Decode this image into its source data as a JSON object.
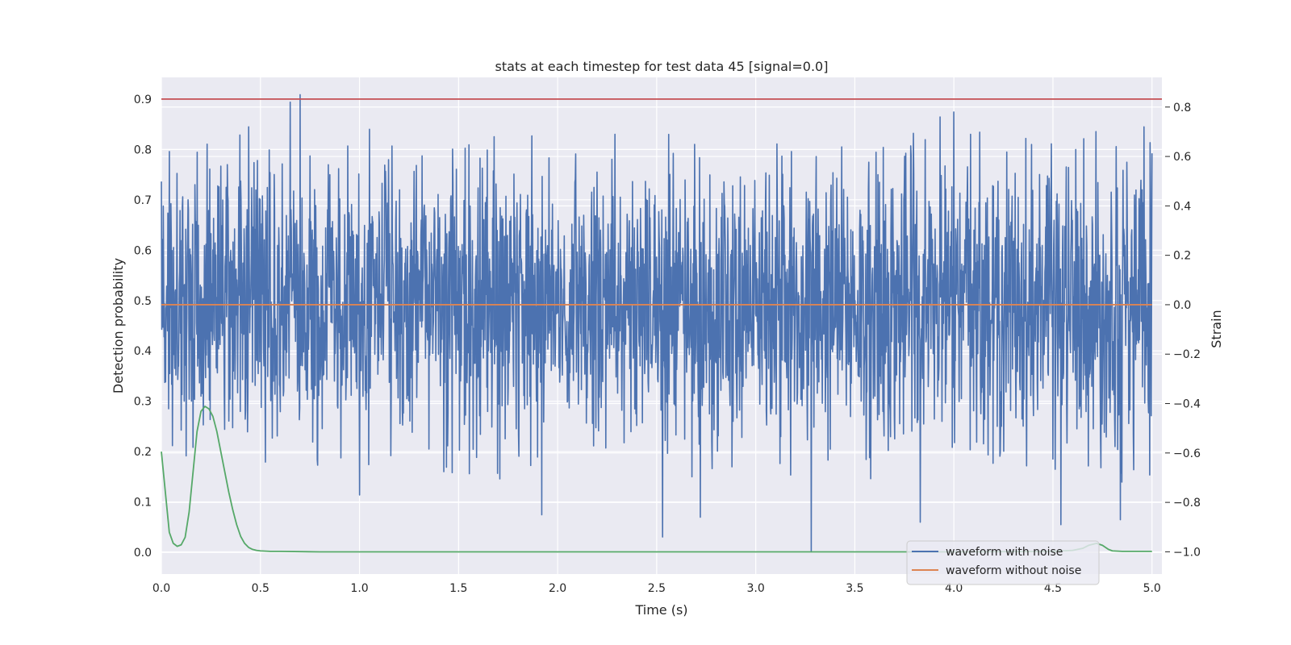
{
  "chart_data": {
    "type": "line",
    "title": "stats at each timestep for test data 45 [signal=0.0]",
    "xlabel": "Time (s)",
    "ylabel_left": "Detection probability",
    "ylabel_right": "Strain",
    "xlim": [
      0.0,
      5.05
    ],
    "ylim_left": [
      -0.043,
      0.943
    ],
    "ylim_right": [
      -1.09,
      0.92
    ],
    "x_ticks": [
      "0.0",
      "0.5",
      "1.0",
      "1.5",
      "2.0",
      "2.5",
      "3.0",
      "3.5",
      "4.0",
      "4.5",
      "5.0"
    ],
    "y_left_ticks": [
      "0.0",
      "0.1",
      "0.2",
      "0.3",
      "0.4",
      "0.5",
      "0.6",
      "0.7",
      "0.8",
      "0.9"
    ],
    "y_right_ticks": [
      "−1.0",
      "−0.8",
      "−0.6",
      "−0.4",
      "−0.2",
      "0.0",
      "0.2",
      "0.4",
      "0.6",
      "0.8"
    ],
    "grid": true,
    "legend_position": "lower-right",
    "threshold": {
      "value": 0.9,
      "axis": "left",
      "color": "#c44e52"
    },
    "series": [
      {
        "name": "waveform with noise",
        "axis": "right",
        "color": "#4c72b0",
        "x_range": [
          0.0,
          5.0
        ],
        "noise_amplitude_std": 0.28,
        "peaks": [
          {
            "x": 0.04,
            "y": 0.62
          },
          {
            "x": 0.23,
            "y": 0.65
          },
          {
            "x": 0.44,
            "y": 0.72
          },
          {
            "x": 0.65,
            "y": 0.82
          },
          {
            "x": 0.7,
            "y": 0.85
          },
          {
            "x": 1.05,
            "y": 0.71
          },
          {
            "x": 1.68,
            "y": 0.68
          },
          {
            "x": 2.29,
            "y": 0.69
          },
          {
            "x": 3.18,
            "y": 0.62
          },
          {
            "x": 3.93,
            "y": 0.76
          },
          {
            "x": 4.0,
            "y": 0.78
          },
          {
            "x": 4.82,
            "y": 0.64
          },
          {
            "x": 4.96,
            "y": 0.72
          }
        ],
        "troughs": [
          {
            "x": 1.0,
            "y": -0.77
          },
          {
            "x": 1.92,
            "y": -0.85
          },
          {
            "x": 2.53,
            "y": -0.94
          },
          {
            "x": 2.72,
            "y": -0.86
          },
          {
            "x": 3.28,
            "y": -1.0
          },
          {
            "x": 3.83,
            "y": -0.88
          },
          {
            "x": 4.54,
            "y": -0.89
          },
          {
            "x": 4.84,
            "y": -0.87
          }
        ]
      },
      {
        "name": "waveform without noise",
        "axis": "right",
        "color": "#dd8452",
        "x": [
          0.0,
          5.0
        ],
        "y": [
          0.0,
          0.0
        ]
      },
      {
        "name": "",
        "axis": "left",
        "color": "#55a868",
        "x": [
          0.0,
          0.02,
          0.04,
          0.06,
          0.08,
          0.1,
          0.12,
          0.14,
          0.16,
          0.18,
          0.2,
          0.22,
          0.24,
          0.26,
          0.28,
          0.3,
          0.32,
          0.34,
          0.36,
          0.38,
          0.4,
          0.42,
          0.44,
          0.46,
          0.48,
          0.5,
          0.55,
          0.6,
          0.8,
          1.0,
          2.0,
          3.0,
          4.0,
          4.5,
          4.6,
          4.65,
          4.68,
          4.72,
          4.75,
          4.78,
          4.8,
          4.85,
          5.0
        ],
        "y": [
          0.2,
          0.12,
          0.04,
          0.018,
          0.012,
          0.015,
          0.03,
          0.08,
          0.16,
          0.24,
          0.28,
          0.29,
          0.285,
          0.27,
          0.24,
          0.2,
          0.16,
          0.12,
          0.085,
          0.055,
          0.032,
          0.018,
          0.01,
          0.006,
          0.004,
          0.003,
          0.002,
          0.002,
          0.001,
          0.001,
          0.001,
          0.001,
          0.001,
          0.002,
          0.004,
          0.008,
          0.014,
          0.018,
          0.014,
          0.006,
          0.003,
          0.002,
          0.002
        ]
      }
    ]
  }
}
